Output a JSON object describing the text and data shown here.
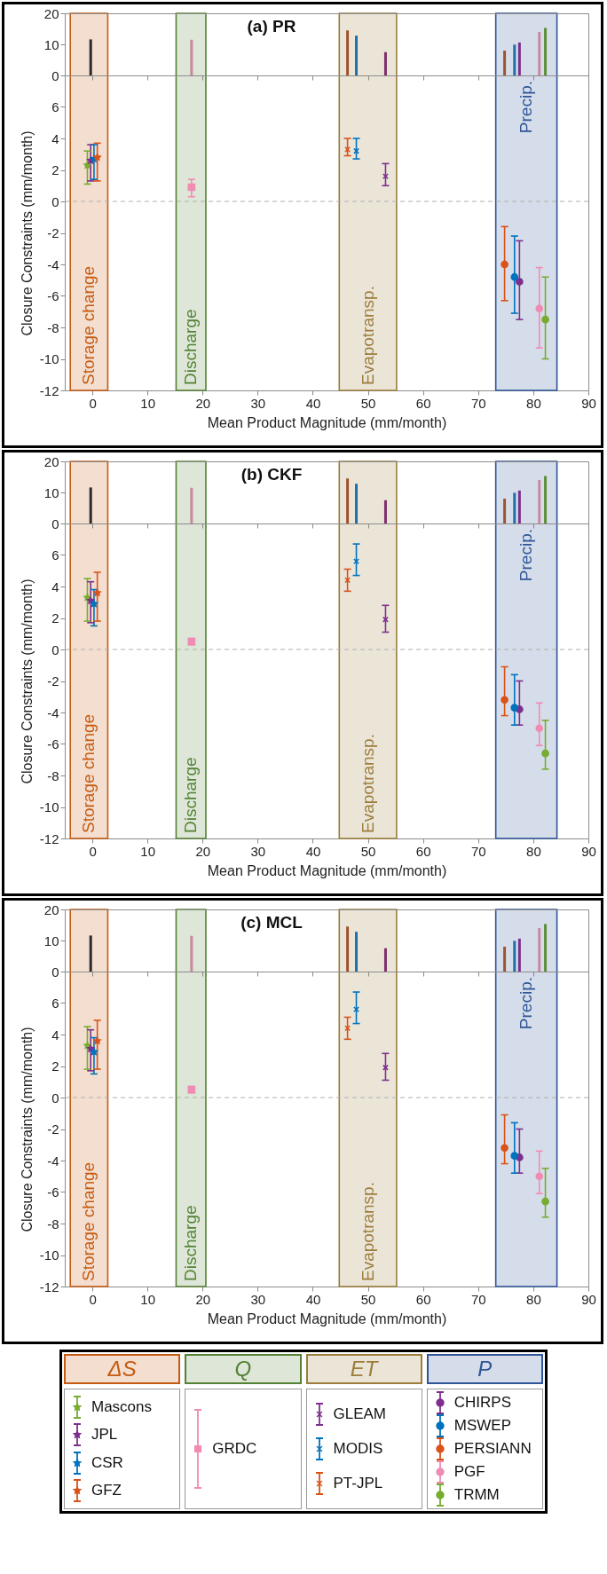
{
  "chart_data": [
    {
      "type": "bar",
      "title": "(a) PR",
      "x": [
        -0.3,
        18,
        46.3,
        47.9,
        53.2,
        74.8,
        76.6,
        77.5,
        81.1,
        82.2
      ],
      "values": [
        11.6,
        11.5,
        14.5,
        12.8,
        7.5,
        8.0,
        9.9,
        10.6,
        14.0,
        15.3
      ],
      "colors": [
        "#2b2b2b",
        "#c98a9e",
        "#a0522d",
        "#1f6fa8",
        "#7e2f6e",
        "#a0522d",
        "#1f6fa8",
        "#7e2f8e",
        "#c98a9e",
        "#5b8f3a"
      ],
      "xlim": [
        -5,
        90
      ],
      "ylim": [
        0,
        20
      ],
      "xticks": [
        0,
        10,
        20,
        30,
        40,
        50,
        60,
        70,
        80,
        90
      ],
      "yticks": [
        0,
        10,
        20
      ],
      "tick_labels": "y"
    },
    {
      "type": "scatter",
      "xlabel": "Mean Product Magnitude (mm/month)",
      "ylabel": "Closure Constraints (mm/month)",
      "xlim": [
        -5,
        90
      ],
      "ylim": [
        -12,
        8
      ],
      "xticks": [
        0,
        10,
        20,
        30,
        40,
        50,
        60,
        70,
        80,
        90
      ],
      "yticks": [
        -12,
        -10,
        -8,
        -6,
        -4,
        -2,
        0,
        2,
        4,
        6
      ],
      "legend": "bottom",
      "annotations": [
        "ΔS",
        "Q",
        "ET",
        "P"
      ],
      "ref_lines": [
        {
          "axis": "y",
          "value": 0,
          "color": "#b0b0b0",
          "line_style": "dashed"
        }
      ],
      "bands": [
        {
          "axis": "x",
          "from": -4,
          "to": 2.8,
          "color": "#c55a11",
          "label": "Storage change"
        },
        {
          "axis": "x",
          "from": 15.2,
          "to": 20.6,
          "color": "#548235",
          "label": "Discharge"
        },
        {
          "axis": "x",
          "from": 44.8,
          "to": 55.2,
          "color": "#9c7d3c",
          "label": "Evapotransp."
        },
        {
          "axis": "x",
          "from": 73.2,
          "to": 84.3,
          "color": "#2f5597",
          "label": "Precip."
        }
      ],
      "series": [
        {
          "name": "Mascons",
          "color": "#77ac30",
          "marker": "star",
          "x": [
            -0.9
          ],
          "values": [
            2.3
          ],
          "errors": [
            [
              1.1,
              3.2
            ]
          ]
        },
        {
          "name": "JPL",
          "color": "#7e2f8e",
          "marker": "star",
          "x": [
            -0.3
          ],
          "values": [
            2.6
          ],
          "errors": [
            [
              1.3,
              3.6
            ]
          ]
        },
        {
          "name": "CSR",
          "color": "#0072bd",
          "marker": "star",
          "x": [
            0.3
          ],
          "values": [
            2.7
          ],
          "errors": [
            [
              1.4,
              3.6
            ]
          ]
        },
        {
          "name": "GFZ",
          "color": "#d95319",
          "marker": "star",
          "x": [
            0.9
          ],
          "values": [
            2.8
          ],
          "errors": [
            [
              1.3,
              3.7
            ]
          ]
        },
        {
          "name": "GRDC",
          "color": "#f08cb4",
          "marker": "square",
          "x": [
            18
          ],
          "values": [
            0.9
          ],
          "errors": [
            [
              0.3,
              1.4
            ]
          ]
        },
        {
          "name": "GLEAM",
          "color": "#7e2f8e",
          "marker": "cross",
          "x": [
            53.2
          ],
          "values": [
            1.6
          ],
          "errors": [
            [
              1.0,
              2.4
            ]
          ]
        },
        {
          "name": "MODIS",
          "color": "#0072bd",
          "marker": "cross",
          "x": [
            47.9
          ],
          "values": [
            3.2
          ],
          "errors": [
            [
              2.7,
              4.0
            ]
          ]
        },
        {
          "name": "PT-JPL",
          "color": "#d95319",
          "marker": "cross",
          "x": [
            46.3
          ],
          "values": [
            3.3
          ],
          "errors": [
            [
              2.9,
              4.0
            ]
          ]
        },
        {
          "name": "CHIRPS",
          "color": "#7e2f8e",
          "marker": "circle",
          "x": [
            77.5
          ],
          "values": [
            -5.1
          ],
          "errors": [
            [
              -7.5,
              -2.5
            ]
          ]
        },
        {
          "name": "MSWEP",
          "color": "#0072bd",
          "marker": "circle",
          "x": [
            76.6
          ],
          "values": [
            -4.8
          ],
          "errors": [
            [
              -7.1,
              -2.2
            ]
          ]
        },
        {
          "name": "PERSIANN",
          "color": "#d95319",
          "marker": "circle",
          "x": [
            74.8
          ],
          "values": [
            -4.0
          ],
          "errors": [
            [
              -6.3,
              -1.6
            ]
          ]
        },
        {
          "name": "PGF",
          "color": "#f08cb4",
          "marker": "circle",
          "x": [
            81.1
          ],
          "values": [
            -6.8
          ],
          "errors": [
            [
              -9.3,
              -4.2
            ]
          ]
        },
        {
          "name": "TRMM",
          "color": "#77ac30",
          "marker": "circle",
          "x": [
            82.2
          ],
          "values": [
            -7.5
          ],
          "errors": [
            [
              -10.0,
              -4.8
            ]
          ]
        }
      ]
    },
    {
      "type": "bar",
      "title": "(b) CKF",
      "x": [
        -0.3,
        18,
        46.3,
        47.9,
        53.2,
        74.8,
        76.6,
        77.5,
        81.1,
        82.2
      ],
      "values": [
        11.6,
        11.5,
        14.5,
        12.8,
        7.5,
        8.0,
        9.9,
        10.6,
        14.0,
        15.3
      ],
      "colors": [
        "#2b2b2b",
        "#c98a9e",
        "#a0522d",
        "#1f6fa8",
        "#7e2f6e",
        "#a0522d",
        "#1f6fa8",
        "#7e2f8e",
        "#c98a9e",
        "#5b8f3a"
      ],
      "xlim": [
        -5,
        90
      ],
      "ylim": [
        0,
        20
      ],
      "xticks": [
        0,
        10,
        20,
        30,
        40,
        50,
        60,
        70,
        80,
        90
      ],
      "yticks": [
        0,
        10,
        20
      ],
      "tick_labels": "y"
    },
    {
      "type": "scatter",
      "xlabel": "Mean Product Magnitude (mm/month)",
      "ylabel": "Closure Constraints (mm/month)",
      "xlim": [
        -5,
        90
      ],
      "ylim": [
        -12,
        8
      ],
      "xticks": [
        0,
        10,
        20,
        30,
        40,
        50,
        60,
        70,
        80,
        90
      ],
      "yticks": [
        -12,
        -10,
        -8,
        -6,
        -4,
        -2,
        0,
        2,
        4,
        6
      ],
      "ref_lines": [
        {
          "axis": "y",
          "value": 0,
          "color": "#b0b0b0",
          "line_style": "dashed"
        }
      ],
      "bands": [
        {
          "axis": "x",
          "from": -4,
          "to": 2.8,
          "color": "#c55a11",
          "label": "Storage change"
        },
        {
          "axis": "x",
          "from": 15.2,
          "to": 20.6,
          "color": "#548235",
          "label": "Discharge"
        },
        {
          "axis": "x",
          "from": 44.8,
          "to": 55.2,
          "color": "#9c7d3c",
          "label": "Evapotransp."
        },
        {
          "axis": "x",
          "from": 73.2,
          "to": 84.3,
          "color": "#2f5597",
          "label": "Precip."
        }
      ],
      "series": [
        {
          "color": "#77ac30",
          "marker": "star",
          "x": [
            -0.9
          ],
          "values": [
            3.3
          ],
          "errors": [
            [
              1.8,
              4.5
            ]
          ]
        },
        {
          "color": "#7e2f8e",
          "marker": "star",
          "x": [
            -0.3
          ],
          "values": [
            3.1
          ],
          "errors": [
            [
              1.7,
              4.3
            ]
          ]
        },
        {
          "color": "#0072bd",
          "marker": "star",
          "x": [
            0.3
          ],
          "values": [
            2.9
          ],
          "errors": [
            [
              1.5,
              3.8
            ]
          ]
        },
        {
          "color": "#d95319",
          "marker": "star",
          "x": [
            0.9
          ],
          "values": [
            3.6
          ],
          "errors": [
            [
              1.8,
              4.9
            ]
          ]
        },
        {
          "color": "#f08cb4",
          "marker": "square",
          "x": [
            18
          ],
          "values": [
            0.5
          ],
          "errors": [
            [
              0.3,
              0.7
            ]
          ]
        },
        {
          "color": "#7e2f8e",
          "marker": "cross",
          "x": [
            53.2
          ],
          "values": [
            1.9
          ],
          "errors": [
            [
              1.1,
              2.8
            ]
          ]
        },
        {
          "color": "#0072bd",
          "marker": "cross",
          "x": [
            47.9
          ],
          "values": [
            5.6
          ],
          "errors": [
            [
              4.7,
              6.7
            ]
          ]
        },
        {
          "color": "#d95319",
          "marker": "cross",
          "x": [
            46.3
          ],
          "values": [
            4.4
          ],
          "errors": [
            [
              3.7,
              5.1
            ]
          ]
        },
        {
          "color": "#7e2f8e",
          "marker": "circle",
          "x": [
            77.5
          ],
          "values": [
            -3.8
          ],
          "errors": [
            [
              -4.8,
              -2.0
            ]
          ]
        },
        {
          "color": "#0072bd",
          "marker": "circle",
          "x": [
            76.6
          ],
          "values": [
            -3.7
          ],
          "errors": [
            [
              -4.8,
              -1.6
            ]
          ]
        },
        {
          "color": "#d95319",
          "marker": "circle",
          "x": [
            74.8
          ],
          "values": [
            -3.2
          ],
          "errors": [
            [
              -4.2,
              -1.1
            ]
          ]
        },
        {
          "color": "#f08cb4",
          "marker": "circle",
          "x": [
            81.1
          ],
          "values": [
            -5.0
          ],
          "errors": [
            [
              -6.1,
              -3.4
            ]
          ]
        },
        {
          "color": "#77ac30",
          "marker": "circle",
          "x": [
            82.2
          ],
          "values": [
            -6.6
          ],
          "errors": [
            [
              -7.6,
              -4.5
            ]
          ]
        }
      ]
    },
    {
      "type": "bar",
      "title": "(c) MCL",
      "x": [
        -0.3,
        18,
        46.3,
        47.9,
        53.2,
        74.8,
        76.6,
        77.5,
        81.1,
        82.2
      ],
      "values": [
        11.6,
        11.5,
        14.5,
        12.8,
        7.5,
        8.0,
        9.9,
        10.6,
        14.0,
        15.3
      ],
      "colors": [
        "#2b2b2b",
        "#c98a9e",
        "#a0522d",
        "#1f6fa8",
        "#7e2f6e",
        "#a0522d",
        "#1f6fa8",
        "#7e2f8e",
        "#c98a9e",
        "#5b8f3a"
      ],
      "xlim": [
        -5,
        90
      ],
      "ylim": [
        0,
        20
      ],
      "xticks": [
        0,
        10,
        20,
        30,
        40,
        50,
        60,
        70,
        80,
        90
      ],
      "yticks": [
        0,
        10,
        20
      ],
      "tick_labels": "y"
    },
    {
      "type": "scatter",
      "xlabel": "Mean Product Magnitude (mm/month)",
      "ylabel": "Closure Constraints (mm/month)",
      "xlim": [
        -5,
        90
      ],
      "ylim": [
        -12,
        8
      ],
      "xticks": [
        0,
        10,
        20,
        30,
        40,
        50,
        60,
        70,
        80,
        90
      ],
      "yticks": [
        -12,
        -10,
        -8,
        -6,
        -4,
        -2,
        0,
        2,
        4,
        6
      ],
      "ref_lines": [
        {
          "axis": "y",
          "value": 0,
          "color": "#b0b0b0",
          "line_style": "dashed"
        }
      ],
      "bands": [
        {
          "axis": "x",
          "from": -4,
          "to": 2.8,
          "color": "#c55a11",
          "label": "Storage change"
        },
        {
          "axis": "x",
          "from": 15.2,
          "to": 20.6,
          "color": "#548235",
          "label": "Discharge"
        },
        {
          "axis": "x",
          "from": 44.8,
          "to": 55.2,
          "color": "#9c7d3c",
          "label": "Evapotransp."
        },
        {
          "axis": "x",
          "from": 73.2,
          "to": 84.3,
          "color": "#2f5597",
          "label": "Precip."
        }
      ],
      "series": [
        {
          "color": "#77ac30",
          "marker": "star",
          "x": [
            -0.9
          ],
          "values": [
            3.3
          ],
          "errors": [
            [
              1.8,
              4.5
            ]
          ]
        },
        {
          "color": "#7e2f8e",
          "marker": "star",
          "x": [
            -0.3
          ],
          "values": [
            3.1
          ],
          "errors": [
            [
              1.7,
              4.3
            ]
          ]
        },
        {
          "color": "#0072bd",
          "marker": "star",
          "x": [
            0.3
          ],
          "values": [
            2.9
          ],
          "errors": [
            [
              1.5,
              3.8
            ]
          ]
        },
        {
          "color": "#d95319",
          "marker": "star",
          "x": [
            0.9
          ],
          "values": [
            3.6
          ],
          "errors": [
            [
              1.8,
              4.9
            ]
          ]
        },
        {
          "color": "#f08cb4",
          "marker": "square",
          "x": [
            18
          ],
          "values": [
            0.5
          ],
          "errors": [
            [
              0.3,
              0.7
            ]
          ]
        },
        {
          "color": "#7e2f8e",
          "marker": "cross",
          "x": [
            53.2
          ],
          "values": [
            1.9
          ],
          "errors": [
            [
              1.1,
              2.8
            ]
          ]
        },
        {
          "color": "#0072bd",
          "marker": "cross",
          "x": [
            47.9
          ],
          "values": [
            5.6
          ],
          "errors": [
            [
              4.7,
              6.7
            ]
          ]
        },
        {
          "color": "#d95319",
          "marker": "cross",
          "x": [
            46.3
          ],
          "values": [
            4.4
          ],
          "errors": [
            [
              3.7,
              5.1
            ]
          ]
        },
        {
          "color": "#7e2f8e",
          "marker": "circle",
          "x": [
            77.5
          ],
          "values": [
            -3.8
          ],
          "errors": [
            [
              -4.8,
              -2.0
            ]
          ]
        },
        {
          "color": "#0072bd",
          "marker": "circle",
          "x": [
            76.6
          ],
          "values": [
            -3.7
          ],
          "errors": [
            [
              -4.8,
              -1.6
            ]
          ]
        },
        {
          "color": "#d95319",
          "marker": "circle",
          "x": [
            74.8
          ],
          "values": [
            -3.2
          ],
          "errors": [
            [
              -4.2,
              -1.1
            ]
          ]
        },
        {
          "color": "#f08cb4",
          "marker": "circle",
          "x": [
            81.1
          ],
          "values": [
            -5.0
          ],
          "errors": [
            [
              -6.1,
              -3.4
            ]
          ]
        },
        {
          "color": "#77ac30",
          "marker": "circle",
          "x": [
            82.2
          ],
          "values": [
            -6.6
          ],
          "errors": [
            [
              -7.6,
              -4.5
            ]
          ]
        }
      ]
    }
  ]
}
